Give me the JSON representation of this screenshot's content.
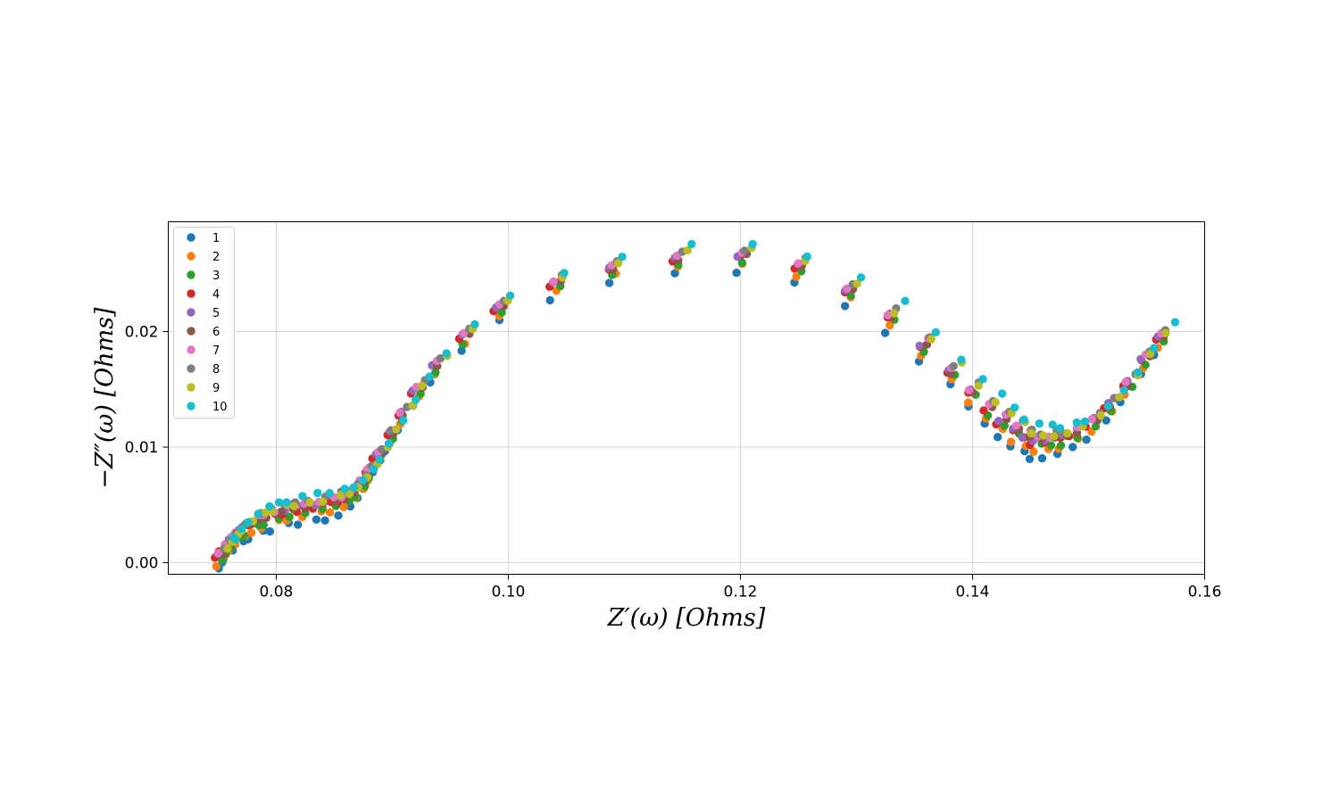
{
  "chart_data": {
    "type": "scatter",
    "xlabel": "Z′(ω) [Ohms]",
    "ylabel": "−Z″(ω) [Ohms]",
    "xlim": [
      0.0707,
      0.16
    ],
    "ylim": [
      -0.001,
      0.0295
    ],
    "x_ticks": [
      0.08,
      0.1,
      0.12,
      0.14,
      0.16
    ],
    "x_tick_labels": [
      "0.08",
      "0.10",
      "0.12",
      "0.14",
      "0.16"
    ],
    "y_ticks": [
      0.0,
      0.01,
      0.02
    ],
    "y_tick_labels": [
      "0.00",
      "0.01",
      "0.02"
    ],
    "grid": true,
    "legend_position": "top-left",
    "colors": [
      "#1f77b4",
      "#ff7f0e",
      "#2ca02c",
      "#d62728",
      "#9467bd",
      "#8c564b",
      "#e377c2",
      "#7f7f7f",
      "#bcbd22",
      "#17becf"
    ],
    "base_curve": {
      "x": [
        0.0748,
        0.0752,
        0.0757,
        0.0763,
        0.077,
        0.0778,
        0.0787,
        0.0797,
        0.0808,
        0.082,
        0.0833,
        0.0845,
        0.0855,
        0.0863,
        0.087,
        0.0877,
        0.0884,
        0.0893,
        0.0905,
        0.0918,
        0.0935,
        0.0958,
        0.099,
        0.1037,
        0.1087,
        0.1143,
        0.1198,
        0.1246,
        0.129,
        0.1325,
        0.1355,
        0.1378,
        0.1395,
        0.141,
        0.1422,
        0.1433,
        0.1443,
        0.1452,
        0.1462,
        0.1473,
        0.1485,
        0.15,
        0.1515,
        0.153,
        0.1545,
        0.1558
      ],
      "y": [
        0.0005,
        0.0011,
        0.0017,
        0.0023,
        0.0029,
        0.0034,
        0.0038,
        0.0041,
        0.0044,
        0.0046,
        0.0048,
        0.0051,
        0.0054,
        0.006,
        0.0068,
        0.0078,
        0.0091,
        0.0108,
        0.0127,
        0.0148,
        0.017,
        0.0194,
        0.022,
        0.024,
        0.0254,
        0.0262,
        0.0264,
        0.0254,
        0.0234,
        0.0211,
        0.0187,
        0.0164,
        0.0146,
        0.0132,
        0.0121,
        0.0113,
        0.0107,
        0.0104,
        0.0104,
        0.0106,
        0.0111,
        0.012,
        0.0135,
        0.0153,
        0.0175,
        0.0193
      ]
    },
    "series": [
      {
        "name": "1",
        "dx": 0.0,
        "dy": -0.0012
      },
      {
        "name": "2",
        "dx": 0.0003,
        "dy": -0.0006
      },
      {
        "name": "3",
        "dx": 0.0005,
        "dy": -0.0003
      },
      {
        "name": "4",
        "dx": 0.0,
        "dy": 0.0
      },
      {
        "name": "5",
        "dx": 0.0002,
        "dy": 0.0003
      },
      {
        "name": "6",
        "dx": 0.0006,
        "dy": 0.0002
      },
      {
        "name": "7",
        "dx": 0.0004,
        "dy": 0.0005
      },
      {
        "name": "8",
        "dx": 0.0008,
        "dy": 0.0008
      },
      {
        "name": "9",
        "dx": 0.001,
        "dy": 0.0007
      },
      {
        "name": "10",
        "dx": 0.0014,
        "dy": 0.0013
      }
    ]
  }
}
